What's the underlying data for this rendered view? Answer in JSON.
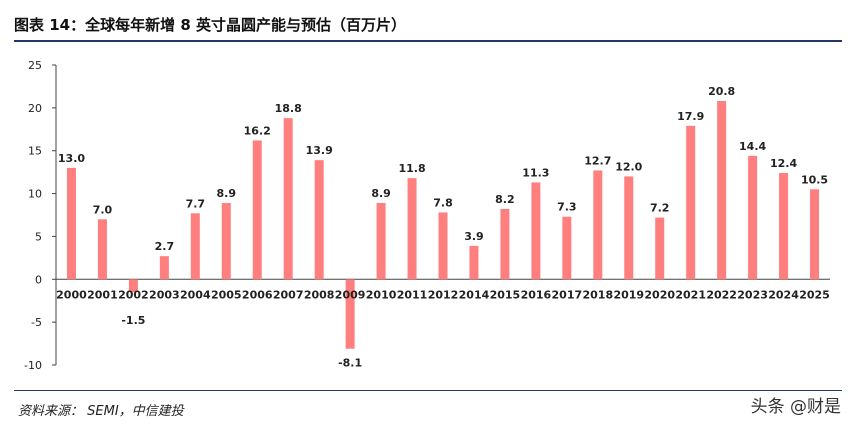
{
  "title": "图表 14：全球每年新增 8 英寸晶圆产能与预估（百万片）",
  "source": "资料来源：  SEMI，中信建投",
  "watermark": "头条 @财是",
  "colors": {
    "bar": "#ff7f7f",
    "axis": "#444444",
    "rule": "#1f3864"
  },
  "chart_data": {
    "type": "bar",
    "title": "",
    "xlabel": "",
    "ylabel": "",
    "ylim": [
      -10,
      25
    ],
    "yticks": [
      "25",
      "20",
      "15",
      "10",
      "5",
      "0",
      "-5",
      "-10"
    ],
    "ytick_values": [
      25,
      20,
      15,
      10,
      5,
      0,
      -5,
      -10
    ],
    "grid": false,
    "categories": [
      "2000",
      "2001",
      "2002",
      "2003",
      "2004",
      "2005",
      "2006",
      "2007",
      "2008",
      "2009",
      "2010",
      "2011",
      "2012",
      "2014",
      "2015",
      "2016",
      "2017",
      "2018",
      "2019",
      "2020",
      "2021",
      "2022",
      "2023",
      "2024",
      "2025"
    ],
    "values": [
      13.0,
      7.0,
      -1.5,
      2.7,
      7.7,
      8.9,
      16.2,
      18.8,
      13.9,
      -8.1,
      8.9,
      11.8,
      7.8,
      3.9,
      8.2,
      11.3,
      7.3,
      12.7,
      12.0,
      7.2,
      17.9,
      20.8,
      14.4,
      12.4,
      10.5
    ],
    "value_labels": [
      "13.0",
      "7.0",
      "-1.5",
      "2.7",
      "7.7",
      "8.9",
      "16.2",
      "18.8",
      "13.9",
      "-8.1",
      "8.9",
      "11.8",
      "7.8",
      "3.9",
      "8.2",
      "11.3",
      "7.3",
      "12.7",
      "12.0",
      "7.2",
      "17.9",
      "20.8",
      "14.4",
      "12.4",
      "10.5"
    ]
  }
}
